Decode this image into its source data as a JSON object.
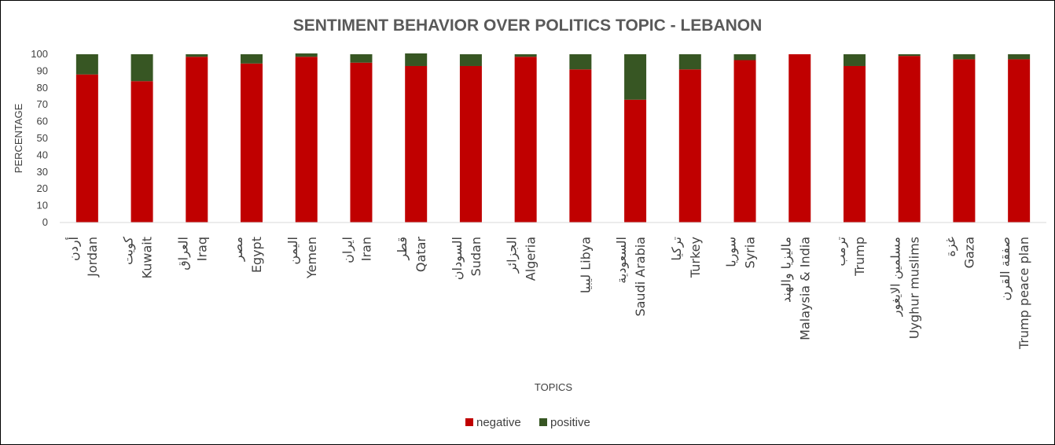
{
  "chart_data": {
    "type": "bar",
    "stacked": true,
    "title": "SENTIMENT BEHAVIOR OVER POLITICS TOPIC - LEBANON",
    "xlabel": "TOPICS",
    "ylabel": "PERCENTAGE",
    "ylim": [
      0,
      100
    ],
    "yticks": [
      0,
      10,
      20,
      30,
      40,
      50,
      60,
      70,
      80,
      90,
      100
    ],
    "grid": false,
    "legend_position": "bottom",
    "categories": [
      {
        "arabic": "أردن",
        "english": "Jordan"
      },
      {
        "arabic": "كويت",
        "english": "Kuwait"
      },
      {
        "arabic": "العراق",
        "english": "Iraq"
      },
      {
        "arabic": "مصر",
        "english": "Egypt"
      },
      {
        "arabic": "اليمن",
        "english": "Yemen"
      },
      {
        "arabic": "ايران",
        "english": "Iran"
      },
      {
        "arabic": "قطر",
        "english": "Qatar"
      },
      {
        "arabic": "السودان",
        "english": "Sudan"
      },
      {
        "arabic": "الجزائر",
        "english": "Algeria"
      },
      {
        "arabic": "",
        "english": "ليبيا Libya"
      },
      {
        "arabic": "السعودية",
        "english": "Saudi Arabia"
      },
      {
        "arabic": "تركيا",
        "english": "Turkey"
      },
      {
        "arabic": "سوريا",
        "english": "Syria"
      },
      {
        "arabic": "ماليزيا والهند",
        "english": "Malaysia & India"
      },
      {
        "arabic": "ترمب",
        "english": "Trump"
      },
      {
        "arabic": "مسلمين الايغور",
        "english": "Uyghur muslims"
      },
      {
        "arabic": "غزة",
        "english": "Gaza"
      },
      {
        "arabic": "صفقة القرن",
        "english": "Trump peace plan"
      }
    ],
    "series": [
      {
        "name": "negative",
        "color": "#C00000",
        "values": [
          88,
          84,
          98.5,
          94.5,
          98.5,
          95,
          93,
          93,
          98.5,
          91,
          73,
          91,
          96.5,
          100,
          93,
          99,
          97,
          97
        ]
      },
      {
        "name": "positive",
        "color": "#375623",
        "values": [
          12,
          16,
          1.5,
          5.5,
          2,
          5,
          7.5,
          7,
          1.5,
          9,
          27,
          9,
          3.5,
          0,
          7,
          1,
          3,
          3
        ]
      }
    ]
  }
}
